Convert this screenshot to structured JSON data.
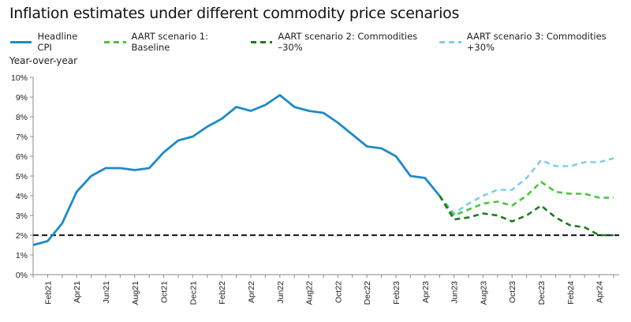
{
  "chart_data": {
    "type": "line",
    "title": "Inflation estimates under different commodity price scenarios",
    "xlabel": "",
    "ylabel": "Year-over-year",
    "ylim": [
      0,
      10
    ],
    "yticks": [
      "0%",
      "1%",
      "2%",
      "3%",
      "4%",
      "5%",
      "6%",
      "7%",
      "8%",
      "9%",
      "10%"
    ],
    "x": [
      "Jan21",
      "Feb21",
      "Mar21",
      "Apr21",
      "May21",
      "Jun21",
      "Jul21",
      "Aug21",
      "Sep21",
      "Oct21",
      "Nov21",
      "Dec21",
      "Jan22",
      "Feb22",
      "Mar22",
      "Apr22",
      "May22",
      "Jun22",
      "Jul22",
      "Aug22",
      "Sep22",
      "Oct22",
      "Nov22",
      "Dec22",
      "Jan23",
      "Feb23",
      "Mar23",
      "Apr23",
      "May23",
      "Jun23",
      "Jul23",
      "Aug23",
      "Sep23",
      "Oct23",
      "Nov23",
      "Dec23",
      "Jan24",
      "Feb24",
      "Mar24",
      "Apr24",
      "May24"
    ],
    "xtick_labels": [
      "Feb21",
      "Apr21",
      "Jun21",
      "Aug21",
      "Oct21",
      "Dec21",
      "Feb22",
      "Apr22",
      "Jun22",
      "Aug22",
      "Oct22",
      "Dec22",
      "Feb23",
      "Apr23",
      "Jun23",
      "Aug23",
      "Oct23",
      "Dec23",
      "Feb24",
      "Apr24"
    ],
    "target_line": {
      "value": 2.0,
      "color": "#1c2733"
    },
    "grid": false,
    "legend_position": "top",
    "series": [
      {
        "name": "Headline CPI",
        "color": "#1f8ac8",
        "dashed": false,
        "start_index": 0,
        "values": [
          1.5,
          1.7,
          2.6,
          4.2,
          5.0,
          5.4,
          5.4,
          5.3,
          5.4,
          6.2,
          6.8,
          7.0,
          7.5,
          7.9,
          8.5,
          8.3,
          8.6,
          9.1,
          8.5,
          8.3,
          8.2,
          7.7,
          7.1,
          6.5,
          6.4,
          6.0,
          5.0,
          4.9,
          4.0
        ]
      },
      {
        "name": "AART scenario 1: Baseline",
        "color": "#4cc43c",
        "dashed": true,
        "start_index": 28,
        "values": [
          4.0,
          3.0,
          3.3,
          3.6,
          3.7,
          3.5,
          4.0,
          4.7,
          4.2,
          4.1,
          4.1,
          3.9,
          3.9
        ]
      },
      {
        "name": "AART scenario 2: Commodities –30%",
        "color": "#1e7a1e",
        "dashed": true,
        "start_index": 28,
        "values": [
          4.0,
          2.8,
          2.9,
          3.1,
          3.0,
          2.7,
          3.0,
          3.5,
          2.9,
          2.5,
          2.4,
          2.0,
          2.0
        ]
      },
      {
        "name": "AART scenario 3: Commodities +30%",
        "color": "#7fcdea",
        "dashed": true,
        "start_index": 28,
        "values": [
          4.0,
          3.1,
          3.6,
          4.0,
          4.3,
          4.3,
          4.9,
          5.8,
          5.5,
          5.5,
          5.7,
          5.7,
          5.9
        ]
      }
    ]
  }
}
